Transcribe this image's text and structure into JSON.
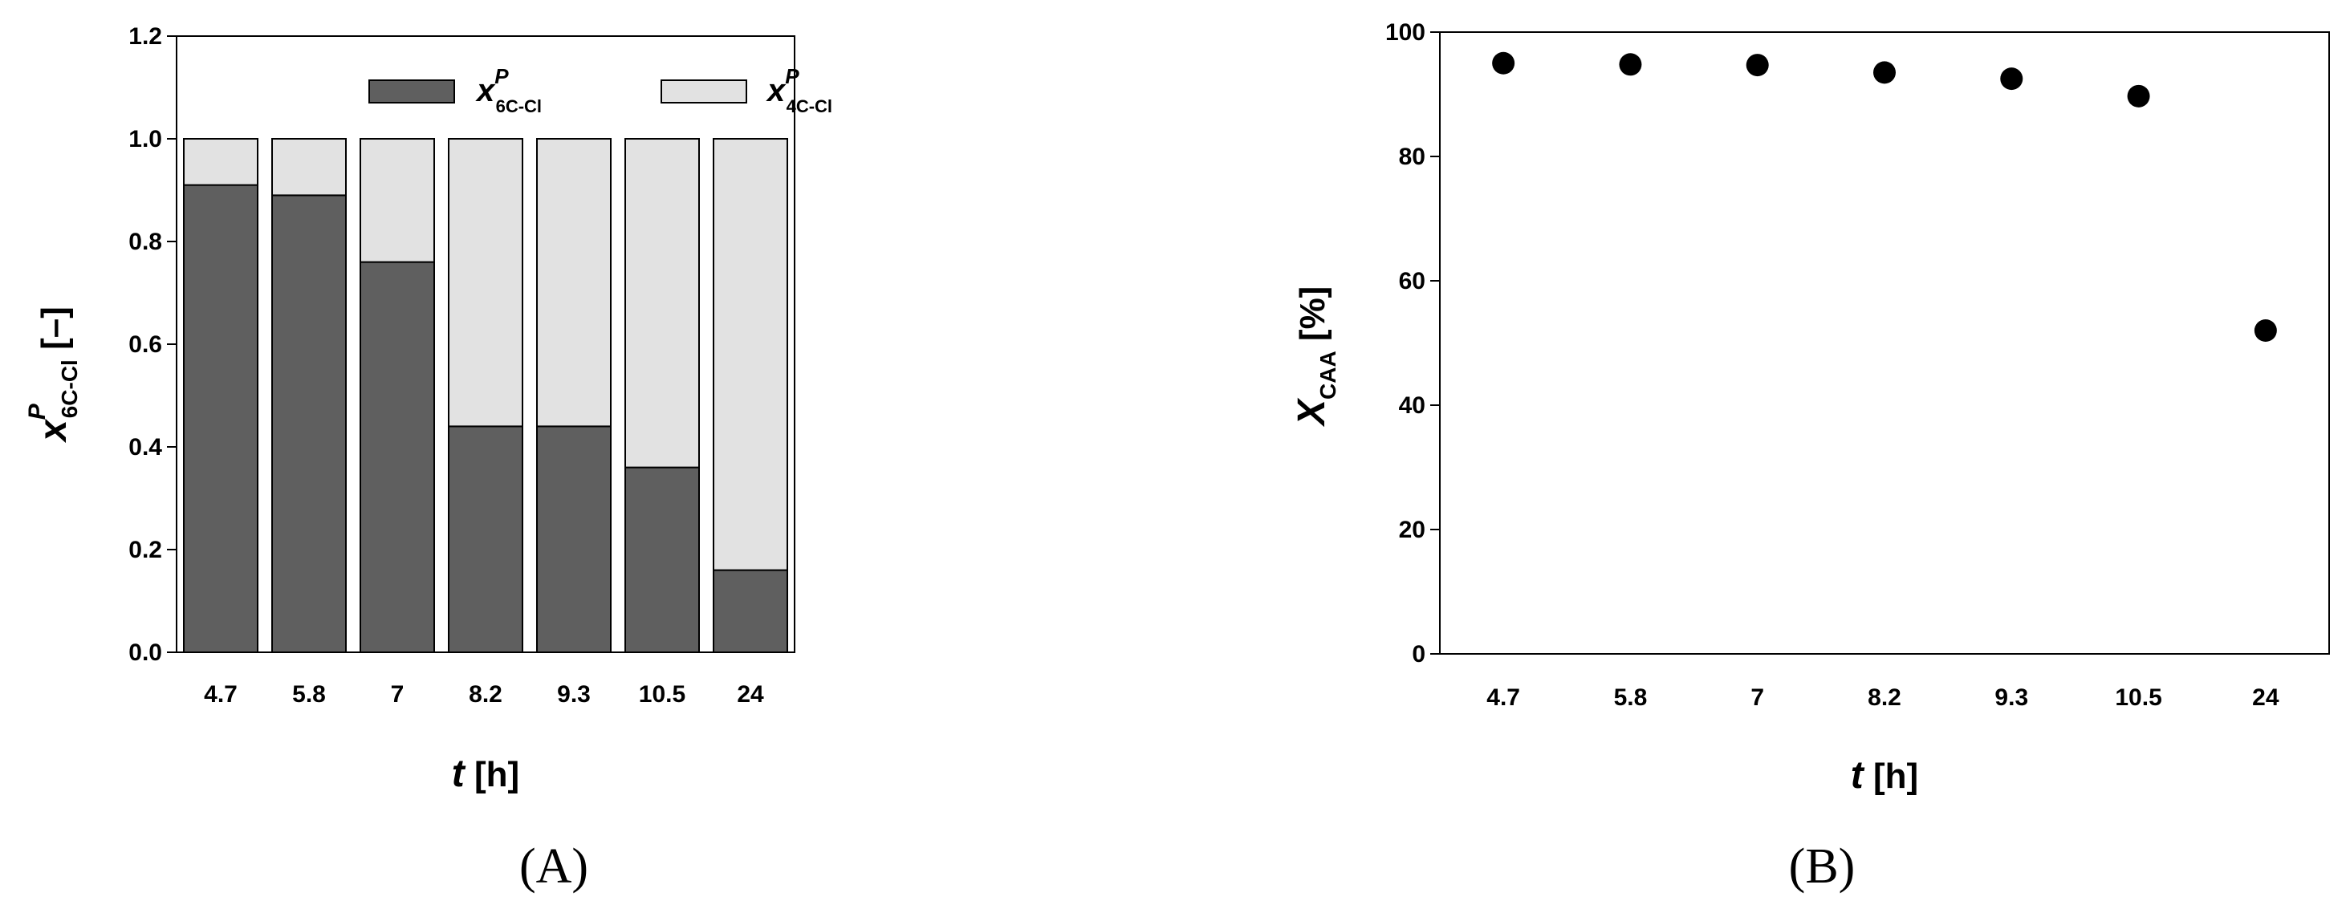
{
  "chart_data": [
    {
      "type": "bar",
      "stacked": true,
      "panel_label": "(A)",
      "categories": [
        "4.7",
        "5.8",
        "7",
        "8.2",
        "9.3",
        "10.5",
        "24"
      ],
      "series": [
        {
          "name_main": "x",
          "name_sup": "P",
          "name_sub": "6C-Cl",
          "color": "#5f5f5f",
          "values": [
            0.91,
            0.89,
            0.76,
            0.44,
            0.44,
            0.36,
            0.16
          ]
        },
        {
          "name_main": "x",
          "name_sup": "P",
          "name_sub": "4C-Cl",
          "color": "#e2e2e2",
          "values": [
            0.09,
            0.11,
            0.24,
            0.56,
            0.56,
            0.64,
            0.84
          ]
        }
      ],
      "xlabel_main": "t",
      "xlabel_unit": " [h]",
      "ylabel_main": "x",
      "ylabel_sup": "P",
      "ylabel_sub": "6C-Cl",
      "ylabel_unit": " [–]",
      "ylim": [
        0,
        1.2
      ],
      "yticks": [
        "0.0",
        "0.2",
        "0.4",
        "0.6",
        "0.8",
        "1.0",
        "1.2"
      ],
      "legend_position": "top-center",
      "grid": false
    },
    {
      "type": "scatter",
      "panel_label": "(B)",
      "categories": [
        "4.7",
        "5.8",
        "7",
        "8.2",
        "9.3",
        "10.5",
        "24"
      ],
      "values": [
        95,
        94.8,
        94.7,
        93.5,
        92.5,
        89.7,
        52
      ],
      "marker_color": "#000000",
      "xlabel_main": "t",
      "xlabel_unit": " [h]",
      "ylabel_main": "X",
      "ylabel_sub": "CAA",
      "ylabel_unit": " [%]",
      "ylim": [
        0,
        100
      ],
      "yticks": [
        "0",
        "20",
        "40",
        "60",
        "80",
        "100"
      ],
      "grid": false
    }
  ]
}
